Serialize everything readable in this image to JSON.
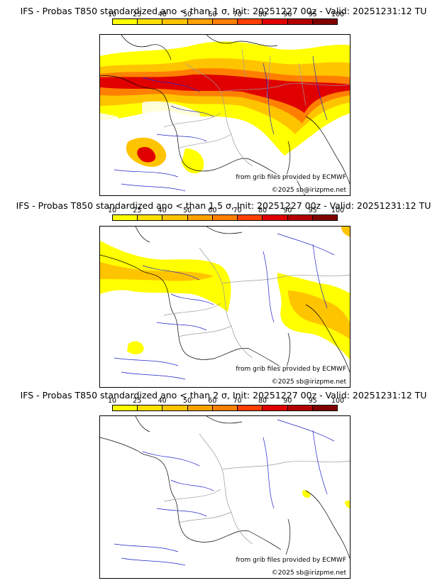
{
  "panels": [
    {
      "title": "IFS - Probas T850  standardized ano < than 1 σ, Init: 20251227 00z - Valid: 20251231:12 TU",
      "credit_line1": "from grib files provided by ECMWF",
      "credit_line2": "©2025 sb@irizpme.net"
    },
    {
      "title": "IFS - Probas T850  standardized ano < than 1.5 σ, Init: 20251227 00z - Valid: 20251231:12 TU",
      "credit_line1": "from grib files provided by ECMWF",
      "credit_line2": "©2025 sb@irizpme.net"
    },
    {
      "title": "IFS - Probas T850  standardized ano < than 2 σ, Init: 20251227 00z - Valid: 20251231:12 TU",
      "credit_line1": "from grib files provided by ECMWF",
      "credit_line2": "©2025 sb@irizpme.net"
    }
  ],
  "colorbar": {
    "ticks": [
      "10",
      "25",
      "40",
      "50",
      "60",
      "70",
      "80",
      "90",
      "95",
      "100"
    ],
    "colors": [
      "#ffff00",
      "#ffe000",
      "#ffc400",
      "#ffa200",
      "#ff8000",
      "#ff4000",
      "#e00000",
      "#b40000",
      "#800000"
    ]
  },
  "colors": {
    "coast": "#000000",
    "rivers": "#2222cc",
    "borders": "#9a9a9a"
  }
}
